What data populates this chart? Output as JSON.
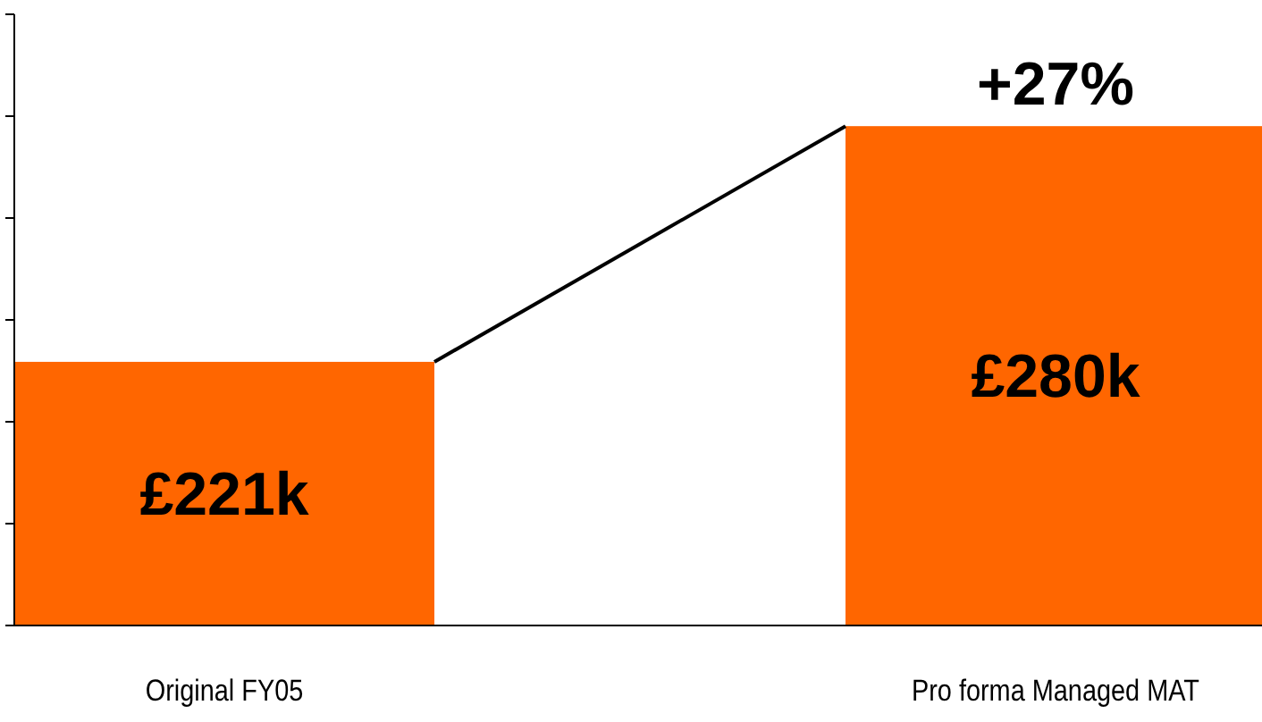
{
  "chart_data": {
    "type": "bar",
    "categories": [
      "Original FY05",
      "Pro forma Managed MAT"
    ],
    "values": [
      221,
      280
    ],
    "value_labels": [
      "£221k",
      "£280k"
    ],
    "color": "#ff6600",
    "ylim": [
      155,
      308
    ],
    "yticks": [
      {
        "value": 155,
        "label": null
      },
      {
        "value": 180.5,
        "label": null
      },
      {
        "value": 206,
        "label": null
      },
      {
        "value": 231.5,
        "label": null
      },
      {
        "value": 257,
        "label": null
      },
      {
        "value": 282.5,
        "label": null
      },
      {
        "value": 308,
        "label": null
      }
    ],
    "annotations": [
      {
        "text": "+27%",
        "x": "Pro forma Managed MAT",
        "y": 280
      }
    ],
    "grid": false
  }
}
